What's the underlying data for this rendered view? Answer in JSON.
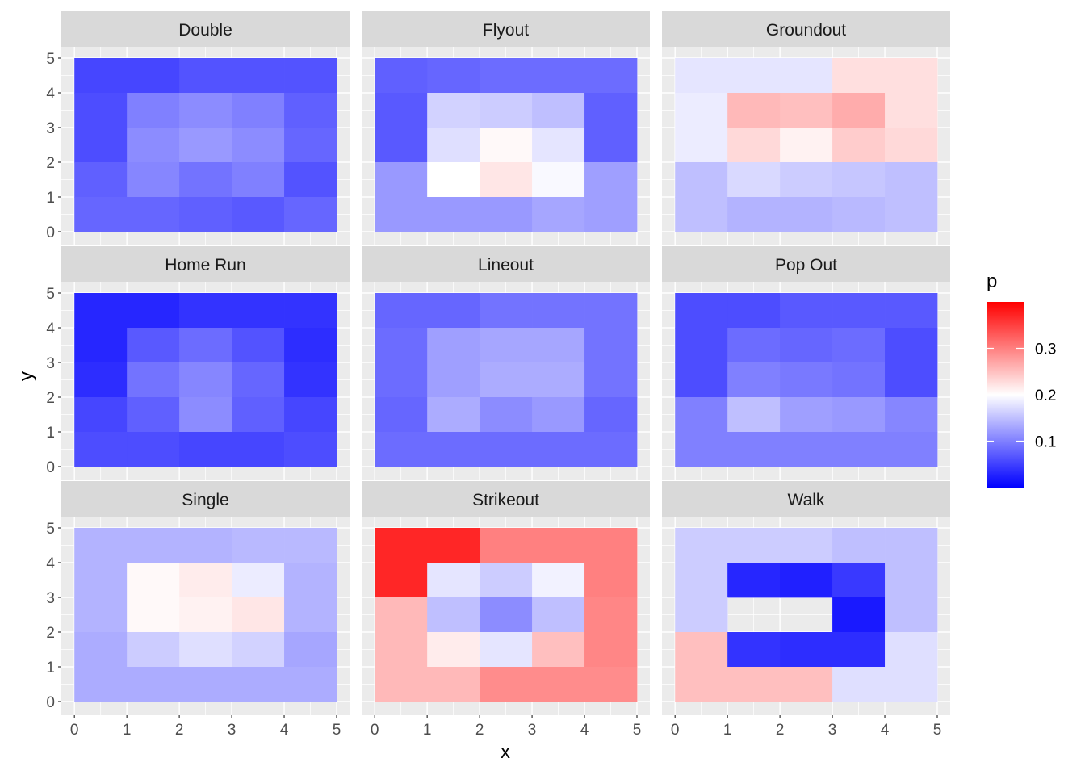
{
  "chart_data": {
    "type": "heatmap",
    "xlabel": "x",
    "ylabel": "y",
    "x_ticks": [
      "0",
      "1",
      "2",
      "3",
      "4",
      "5"
    ],
    "y_ticks": [
      "0",
      "1",
      "2",
      "3",
      "4",
      "5"
    ],
    "xlim": [
      0,
      5
    ],
    "ylim": [
      0,
      5
    ],
    "legend": {
      "title": "p",
      "placement": "right",
      "ticks": [
        "0.1",
        "0.2",
        "0.3"
      ],
      "tick_values": [
        0.1,
        0.2,
        0.3
      ],
      "range": [
        0.0,
        0.4
      ],
      "low_color": "#0000ff",
      "mid_color": "#ffffff",
      "high_color": "#ff0000",
      "midpoint": 0.2
    },
    "grid": true,
    "cell_x_edges": [
      0,
      1,
      2,
      3,
      4,
      5
    ],
    "cell_y_edges": [
      0,
      1,
      2,
      3,
      4,
      5
    ],
    "cell_x_bounds": [
      0,
      0.5,
      1,
      1.5,
      2,
      2.5,
      3,
      3.5,
      4,
      4.5,
      5
    ],
    "cell_y_bounds": [
      0,
      0.5,
      1,
      1.5,
      2,
      2.5,
      3,
      3.5,
      4,
      4.5,
      5
    ],
    "panels": [
      {
        "name": "Double",
        "layout": "5x5",
        "values": [
          [
            0.055,
            0.055,
            0.065,
            0.065,
            0.065
          ],
          [
            0.06,
            0.1,
            0.11,
            0.1,
            0.075
          ],
          [
            0.06,
            0.11,
            0.12,
            0.11,
            0.08
          ],
          [
            0.075,
            0.105,
            0.09,
            0.1,
            0.065
          ],
          [
            0.08,
            0.08,
            0.075,
            0.07,
            0.08
          ]
        ]
      },
      {
        "name": "Flyout",
        "layout": "5x5",
        "values": [
          [
            0.075,
            0.08,
            0.085,
            0.085,
            0.085
          ],
          [
            0.07,
            0.165,
            0.16,
            0.15,
            0.075
          ],
          [
            0.07,
            0.175,
            0.205,
            0.18,
            0.075
          ],
          [
            0.12,
            0.2,
            0.22,
            0.195,
            0.125
          ],
          [
            0.12,
            0.12,
            0.12,
            0.13,
            0.125
          ]
        ]
      },
      {
        "name": "Groundout",
        "layout": "groundout",
        "values": [
          [
            0.18,
            0.18,
            0.18,
            0.225,
            0.225
          ],
          [
            0.185,
            0.255,
            0.25,
            0.265,
            0.225
          ],
          [
            0.185,
            0.23,
            0.21,
            0.24,
            0.23
          ],
          [
            0.15,
            0.17,
            0.16,
            0.155,
            0.15
          ],
          [
            0.15,
            0.14,
            0.14,
            0.145,
            0.15
          ]
        ]
      },
      {
        "name": "Home Run",
        "layout": "5x5",
        "values": [
          [
            0.03,
            0.03,
            0.04,
            0.04,
            0.04
          ],
          [
            0.03,
            0.07,
            0.085,
            0.065,
            0.035
          ],
          [
            0.035,
            0.09,
            0.105,
            0.08,
            0.04
          ],
          [
            0.055,
            0.075,
            0.11,
            0.075,
            0.055
          ],
          [
            0.06,
            0.06,
            0.055,
            0.055,
            0.06
          ]
        ]
      },
      {
        "name": "Lineout",
        "layout": "5x5",
        "values": [
          [
            0.08,
            0.08,
            0.09,
            0.09,
            0.09
          ],
          [
            0.085,
            0.125,
            0.13,
            0.13,
            0.09
          ],
          [
            0.085,
            0.125,
            0.135,
            0.135,
            0.09
          ],
          [
            0.08,
            0.135,
            0.11,
            0.12,
            0.08
          ],
          [
            0.085,
            0.085,
            0.085,
            0.085,
            0.085
          ]
        ]
      },
      {
        "name": "Pop Out",
        "layout": "5x5",
        "values": [
          [
            0.06,
            0.06,
            0.07,
            0.07,
            0.07
          ],
          [
            0.06,
            0.085,
            0.08,
            0.085,
            0.06
          ],
          [
            0.06,
            0.1,
            0.095,
            0.09,
            0.06
          ],
          [
            0.1,
            0.15,
            0.125,
            0.12,
            0.105
          ],
          [
            0.1,
            0.1,
            0.1,
            0.1,
            0.1
          ]
        ]
      },
      {
        "name": "Single",
        "layout": "5x5",
        "values": [
          [
            0.14,
            0.14,
            0.14,
            0.145,
            0.145
          ],
          [
            0.14,
            0.205,
            0.215,
            0.185,
            0.14
          ],
          [
            0.14,
            0.205,
            0.21,
            0.22,
            0.14
          ],
          [
            0.135,
            0.16,
            0.175,
            0.165,
            0.13
          ],
          [
            0.135,
            0.135,
            0.135,
            0.135,
            0.135
          ]
        ]
      },
      {
        "name": "Strikeout",
        "layout": "5x5",
        "values": [
          [
            0.37,
            0.37,
            0.3,
            0.3,
            0.3
          ],
          [
            0.37,
            0.18,
            0.16,
            0.19,
            0.3
          ],
          [
            0.255,
            0.15,
            0.11,
            0.15,
            0.295
          ],
          [
            0.255,
            0.215,
            0.18,
            0.25,
            0.295
          ],
          [
            0.255,
            0.255,
            0.29,
            0.29,
            0.29
          ]
        ]
      },
      {
        "name": "Walk",
        "layout": "walk",
        "values": [
          [
            0.16,
            0.16,
            0.16,
            0.15,
            0.15
          ],
          [
            0.16,
            0.03,
            0.025,
            0.045,
            0.15
          ],
          [
            0.16,
            null,
            null,
            0.02,
            0.15
          ],
          [
            0.25,
            0.04,
            0.035,
            0.035,
            0.175
          ],
          [
            0.25,
            0.25,
            0.25,
            0.175,
            0.175
          ]
        ]
      }
    ]
  }
}
